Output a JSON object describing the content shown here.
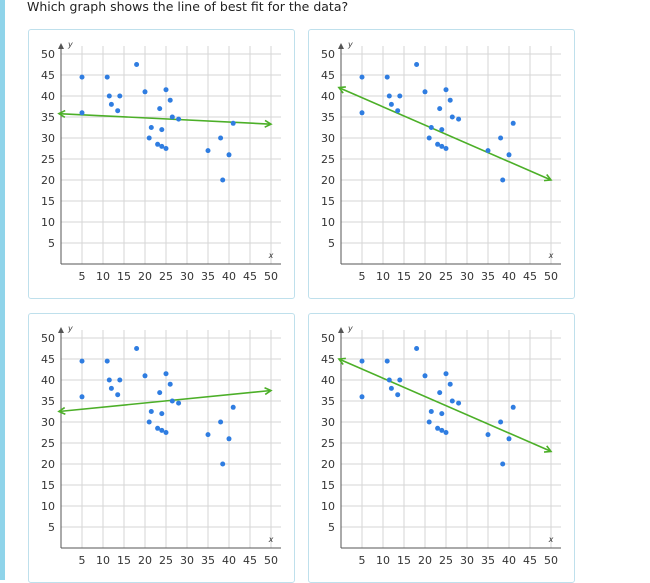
{
  "question": "Which graph shows the line of best fit for the data?",
  "colors": {
    "point": "#2f7de1",
    "line": "#4caf28",
    "grid": "#d5d5d5",
    "axis": "#555555",
    "card_border": "#bfe0ec"
  },
  "chart_data": [
    {
      "type": "scatter",
      "title": "",
      "xlabel": "x",
      "ylabel": "y",
      "xlim": [
        0,
        50
      ],
      "ylim": [
        0,
        50
      ],
      "x_ticks": [
        5,
        10,
        15,
        20,
        25,
        30,
        35,
        40,
        45,
        50
      ],
      "y_ticks": [
        5,
        10,
        15,
        20,
        25,
        30,
        35,
        40,
        45,
        50
      ],
      "grid": true,
      "points": [
        [
          5,
          44.5
        ],
        [
          5,
          36
        ],
        [
          11,
          44.5
        ],
        [
          11.5,
          40
        ],
        [
          12,
          38
        ],
        [
          13.5,
          36.5
        ],
        [
          14,
          40
        ],
        [
          18,
          47.5
        ],
        [
          20,
          41
        ],
        [
          21,
          30
        ],
        [
          21.5,
          32.5
        ],
        [
          23,
          28.5
        ],
        [
          23.5,
          37
        ],
        [
          24,
          32
        ],
        [
          24,
          28
        ],
        [
          25,
          27.5
        ],
        [
          25,
          41.5
        ],
        [
          26,
          39
        ],
        [
          26.5,
          35
        ],
        [
          28,
          34.5
        ],
        [
          35,
          27
        ],
        [
          38,
          30
        ],
        [
          38.5,
          20
        ],
        [
          40,
          26
        ],
        [
          41,
          33.5
        ]
      ],
      "line": {
        "from": [
          -0.5,
          35.8
        ],
        "to": [
          50,
          33.3
        ]
      }
    },
    {
      "type": "scatter",
      "title": "",
      "xlabel": "x",
      "ylabel": "y",
      "xlim": [
        0,
        50
      ],
      "ylim": [
        0,
        50
      ],
      "x_ticks": [
        5,
        10,
        15,
        20,
        25,
        30,
        35,
        40,
        45,
        50
      ],
      "y_ticks": [
        5,
        10,
        15,
        20,
        25,
        30,
        35,
        40,
        45,
        50
      ],
      "grid": true,
      "points": [
        [
          5,
          44.5
        ],
        [
          5,
          36
        ],
        [
          11,
          44.5
        ],
        [
          11.5,
          40
        ],
        [
          12,
          38
        ],
        [
          13.5,
          36.5
        ],
        [
          14,
          40
        ],
        [
          18,
          47.5
        ],
        [
          20,
          41
        ],
        [
          21,
          30
        ],
        [
          21.5,
          32.5
        ],
        [
          23,
          28.5
        ],
        [
          23.5,
          37
        ],
        [
          24,
          32
        ],
        [
          24,
          28
        ],
        [
          25,
          27.5
        ],
        [
          25,
          41.5
        ],
        [
          26,
          39
        ],
        [
          26.5,
          35
        ],
        [
          28,
          34.5
        ],
        [
          35,
          27
        ],
        [
          38,
          30
        ],
        [
          38.5,
          20
        ],
        [
          40,
          26
        ],
        [
          41,
          33.5
        ]
      ],
      "line": {
        "from": [
          -0.5,
          42
        ],
        "to": [
          50,
          20
        ]
      }
    },
    {
      "type": "scatter",
      "title": "",
      "xlabel": "x",
      "ylabel": "y",
      "xlim": [
        0,
        50
      ],
      "ylim": [
        0,
        50
      ],
      "x_ticks": [
        5,
        10,
        15,
        20,
        25,
        30,
        35,
        40,
        45,
        50
      ],
      "y_ticks": [
        5,
        10,
        15,
        20,
        25,
        30,
        35,
        40,
        45,
        50
      ],
      "grid": true,
      "points": [
        [
          5,
          44.5
        ],
        [
          5,
          36
        ],
        [
          11,
          44.5
        ],
        [
          11.5,
          40
        ],
        [
          12,
          38
        ],
        [
          13.5,
          36.5
        ],
        [
          14,
          40
        ],
        [
          18,
          47.5
        ],
        [
          20,
          41
        ],
        [
          21,
          30
        ],
        [
          21.5,
          32.5
        ],
        [
          23,
          28.5
        ],
        [
          23.5,
          37
        ],
        [
          24,
          32
        ],
        [
          24,
          28
        ],
        [
          25,
          27.5
        ],
        [
          25,
          41.5
        ],
        [
          26,
          39
        ],
        [
          26.5,
          35
        ],
        [
          28,
          34.5
        ],
        [
          35,
          27
        ],
        [
          38,
          30
        ],
        [
          38.5,
          20
        ],
        [
          40,
          26
        ],
        [
          41,
          33.5
        ]
      ],
      "line": {
        "from": [
          -0.5,
          32.5
        ],
        "to": [
          50,
          37.5
        ]
      }
    },
    {
      "type": "scatter",
      "title": "",
      "xlabel": "x",
      "ylabel": "y",
      "xlim": [
        0,
        50
      ],
      "ylim": [
        0,
        50
      ],
      "x_ticks": [
        5,
        10,
        15,
        20,
        25,
        30,
        35,
        40,
        45,
        50
      ],
      "y_ticks": [
        5,
        10,
        15,
        20,
        25,
        30,
        35,
        40,
        45,
        50
      ],
      "grid": true,
      "points": [
        [
          5,
          44.5
        ],
        [
          5,
          36
        ],
        [
          11,
          44.5
        ],
        [
          11.5,
          40
        ],
        [
          12,
          38
        ],
        [
          13.5,
          36.5
        ],
        [
          14,
          40
        ],
        [
          18,
          47.5
        ],
        [
          20,
          41
        ],
        [
          21,
          30
        ],
        [
          21.5,
          32.5
        ],
        [
          23,
          28.5
        ],
        [
          23.5,
          37
        ],
        [
          24,
          32
        ],
        [
          24,
          28
        ],
        [
          25,
          27.5
        ],
        [
          25,
          41.5
        ],
        [
          26,
          39
        ],
        [
          26.5,
          35
        ],
        [
          28,
          34.5
        ],
        [
          35,
          27
        ],
        [
          38,
          30
        ],
        [
          38.5,
          20
        ],
        [
          40,
          26
        ],
        [
          41,
          33.5
        ]
      ],
      "line": {
        "from": [
          -0.5,
          45
        ],
        "to": [
          50,
          23
        ]
      }
    }
  ]
}
